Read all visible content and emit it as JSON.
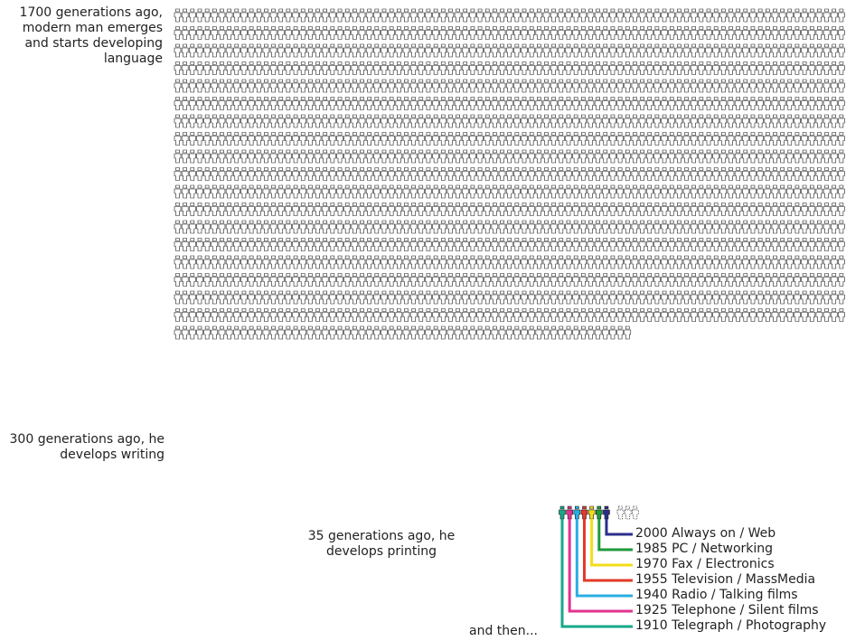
{
  "labels": {
    "language": "1700 generations ago, modern man emerges and starts developing language",
    "writing": "300 generations ago, he develops writing",
    "printing": "35 generations ago, he develops printing",
    "and_then": "and then..."
  },
  "grid": {
    "total_generations": 1700,
    "ungray_after_writing_row": 20,
    "colors": {
      "outline": "#1a1a1a",
      "empty_fill": "#ffffff",
      "gray_fill": "#a5a5a5",
      "dark_fill": "#6f6f6f",
      "future_fill": "#ffffff"
    }
  },
  "milestones": [
    {
      "year": "2000",
      "text": "2000 Always on / Web",
      "color": "#2a2f8a"
    },
    {
      "year": "1985",
      "text": "1985 PC / Networking",
      "color": "#1f9a3c"
    },
    {
      "year": "1970",
      "text": "1970 Fax / Electronics",
      "color": "#f1de1a"
    },
    {
      "year": "1955",
      "text": "1955 Television / MassMedia",
      "color": "#e23a2a"
    },
    {
      "year": "1940",
      "text": "1940 Radio / Talking films",
      "color": "#29aee3"
    },
    {
      "year": "1925",
      "text": "1925 Telephone / Silent films",
      "color": "#e3328f"
    },
    {
      "year": "1910",
      "text": "1910 Telegraph / Photography",
      "color": "#16a88a"
    }
  ]
}
